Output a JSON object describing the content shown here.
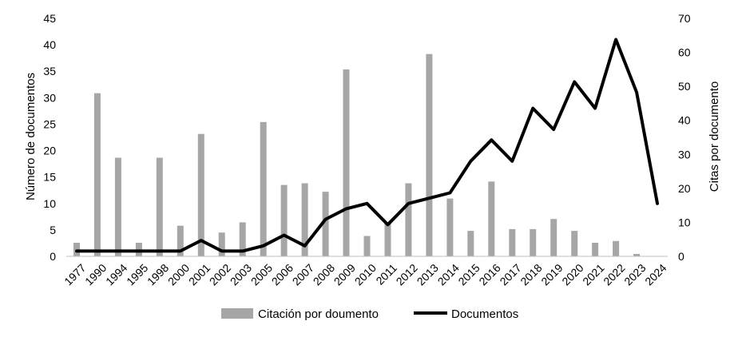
{
  "chart_data": {
    "type": "bar+line",
    "categories": [
      "1977",
      "1990",
      "1994",
      "1995",
      "1998",
      "2000",
      "2001",
      "2002",
      "2003",
      "2005",
      "2006",
      "2007",
      "2008",
      "2009",
      "2010",
      "2011",
      "2012",
      "2013",
      "2014",
      "2015",
      "2016",
      "2017",
      "2018",
      "2019",
      "2020",
      "2021",
      "2022",
      "2023",
      "2024"
    ],
    "series": [
      {
        "name": "Citación por doumento",
        "kind": "bar",
        "axis": "right",
        "color": "#a6a6a6",
        "values": [
          4,
          48,
          29,
          4,
          29,
          9,
          36,
          7,
          10,
          39.5,
          21,
          21.5,
          19,
          55,
          6,
          10,
          21.5,
          59.5,
          17,
          7.5,
          22,
          8,
          8,
          11,
          7.5,
          4,
          4.5,
          0.7,
          0
        ]
      },
      {
        "name": "Documentos",
        "kind": "line",
        "axis": "left",
        "color": "#000000",
        "values": [
          1,
          1,
          1,
          1,
          1,
          1,
          3,
          1,
          1,
          2,
          4,
          2,
          7,
          9,
          10,
          6,
          10,
          11,
          12,
          18,
          22,
          18,
          28,
          24,
          33,
          28,
          41,
          31,
          10
        ]
      }
    ],
    "ylabel_left": "Número de documentos",
    "ylabel_right": "Citas por documento",
    "ylim_left": [
      0,
      45
    ],
    "ylim_right": [
      0,
      70
    ],
    "yticks_left": [
      "0",
      "5",
      "10",
      "15",
      "20",
      "25",
      "30",
      "35",
      "40",
      "45"
    ],
    "yticks_right": [
      "0",
      "10",
      "20",
      "30",
      "40",
      "50",
      "60",
      "70"
    ],
    "legend_position": "bottom-center",
    "grid": false
  }
}
